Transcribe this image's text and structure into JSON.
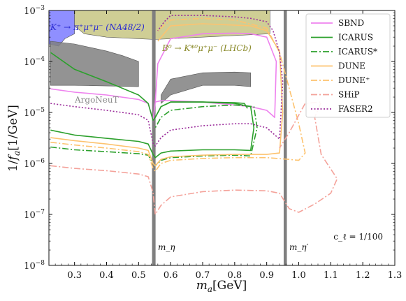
{
  "chart_data": {
    "type": "line",
    "xlabel": "m_a[GeV]",
    "ylabel": "1/f_a[1/GeV]",
    "xlim": [
      0.22,
      1.3
    ],
    "ylim": [
      1e-08,
      0.001
    ],
    "yscale": "log",
    "grid": false,
    "legend_position": "top-right",
    "x_ticks": [
      "0.3",
      "0.4",
      "0.5",
      "0.6",
      "0.7",
      "0.8",
      "0.9",
      "1.0",
      "1.1",
      "1.2",
      "1.3"
    ],
    "y_ticks": [
      {
        "base": "10",
        "exp": "−8"
      },
      {
        "base": "10",
        "exp": "−7"
      },
      {
        "base": "10",
        "exp": "−6"
      },
      {
        "base": "10",
        "exp": "−5"
      },
      {
        "base": "10",
        "exp": "−4"
      },
      {
        "base": "10",
        "exp": "−3"
      }
    ],
    "colors": {
      "SBND": "#ee82ee",
      "ICARUS": "#2ca02c",
      "DUNE": "#fdc36f",
      "SHiP": "#f4a29a",
      "FASER2": "#9b2d9b",
      "NA48": "#7b7bff",
      "LHCb": "#b5b35c",
      "ArgoNeuT": "#808080",
      "mask": "#7f7f7f"
    },
    "legend": [
      "SBND",
      "ICARUS",
      "ICARUS*",
      "DUNE",
      "DUNE⁺",
      "SHiP",
      "FASER2"
    ],
    "annotations": {
      "na48": "K⁺ → π⁺μ⁺μ⁻ (NA48/2)",
      "lhcb": "B⁰ → K*⁰μ⁺μ⁻ (LHCb)",
      "argoneut": "ArgoNeuT",
      "m_eta": "m_η",
      "m_etaprime": "m_η′",
      "coupling": "c_ℓ = 1/100"
    },
    "vertical_bands": [
      {
        "name": "eta",
        "x": [
          0.542,
          0.553
        ]
      },
      {
        "name": "eta-prime",
        "x": [
          0.953,
          0.963
        ]
      }
    ],
    "series": [
      {
        "name": "SBND",
        "style": "solid",
        "x": [
          0.225,
          0.3,
          0.4,
          0.5,
          0.53,
          0.545,
          0.552,
          0.57,
          0.6,
          0.7,
          0.8,
          0.85,
          0.9,
          0.925,
          0.93,
          0.9,
          0.85,
          0.8,
          0.7,
          0.6,
          0.56,
          0.552
        ],
        "y": [
          2.9e-05,
          2.5e-05,
          2.2e-05,
          1.8e-05,
          1.5e-05,
          7e-06,
          1.6e-05,
          1.7e-05,
          1.7e-05,
          1.6e-05,
          1.4e-05,
          1.3e-05,
          1.1e-05,
          8e-06,
          0.0001,
          0.0003,
          0.00035,
          0.00036,
          0.00035,
          0.00028,
          9e-05,
          1.6e-05
        ]
      },
      {
        "name": "ICARUS (upper)",
        "style": "solid",
        "x": [
          0.225,
          0.3,
          0.4,
          0.5,
          0.53,
          0.545,
          0.552,
          0.57,
          0.6,
          0.7,
          0.8,
          0.83,
          0.84
        ],
        "y": [
          0.00015,
          7e-05,
          4e-05,
          2.2e-05,
          1.5e-05,
          7e-06,
          8e-06,
          1.3e-05,
          1.6e-05,
          1.6e-05,
          1.55e-05,
          1.5e-05,
          1.2e-05
        ]
      },
      {
        "name": "ICARUS (lower)",
        "style": "solid",
        "x": [
          0.225,
          0.3,
          0.4,
          0.5,
          0.53,
          0.545,
          0.552,
          0.57,
          0.6,
          0.7,
          0.8,
          0.85,
          0.86,
          0.85,
          0.8,
          0.7,
          0.6,
          0.57,
          0.552
        ],
        "y": [
          4.5e-06,
          3.6e-06,
          3.1e-06,
          2.7e-06,
          2.4e-06,
          1.5e-06,
          1.3e-06,
          1.6e-06,
          1.75e-06,
          1.85e-06,
          1.85e-06,
          1.8e-06,
          5e-06,
          1.3e-05,
          1.5e-05,
          1.6e-05,
          1.6e-05,
          1.3e-05,
          8e-06
        ]
      },
      {
        "name": "ICARUS*",
        "style": "dashdot",
        "x": [
          0.225,
          0.3,
          0.4,
          0.5,
          0.53,
          0.545,
          0.552,
          0.57,
          0.6,
          0.7,
          0.8,
          0.85,
          0.87,
          0.86,
          0.8,
          0.7,
          0.6,
          0.57,
          0.552
        ],
        "y": [
          2.1e-06,
          1.85e-06,
          1.7e-06,
          1.55e-06,
          1.45e-06,
          1e-06,
          9e-07,
          1.15e-06,
          1.3e-06,
          1.4e-06,
          1.45e-06,
          1.4e-06,
          5e-06,
          1.3e-05,
          1.4e-05,
          1.3e-05,
          1.1e-05,
          8e-06,
          5e-06
        ]
      },
      {
        "name": "DUNE",
        "style": "solid",
        "x": [
          0.225,
          0.3,
          0.4,
          0.5,
          0.53,
          0.545,
          0.552,
          0.57,
          0.6,
          0.7,
          0.8,
          0.9,
          0.94,
          0.95,
          0.94,
          0.9,
          0.85,
          0.7,
          0.6,
          0.56
        ],
        "y": [
          3.2e-06,
          2.8e-06,
          2.4e-06,
          2e-06,
          1.8e-06,
          1e-06,
          9e-07,
          1.2e-06,
          1.35e-06,
          1.45e-06,
          1.5e-06,
          1.5e-06,
          1.6e-06,
          1e-05,
          0.00016,
          0.0004,
          0.0005,
          0.00055,
          0.0005,
          0.00025
        ]
      },
      {
        "name": "DUNE⁺",
        "style": "dashdot",
        "x": [
          0.225,
          0.3,
          0.4,
          0.5,
          0.53,
          0.545,
          0.552,
          0.57,
          0.6,
          0.7,
          0.8,
          0.9,
          0.97,
          1.0,
          1.02,
          1.0,
          0.97,
          0.94,
          0.9,
          0.8,
          0.7,
          0.6,
          0.56
        ],
        "y": [
          2.6e-06,
          2.3e-06,
          2e-06,
          1.7e-06,
          1.5e-06,
          8e-07,
          7e-07,
          1e-06,
          1.15e-06,
          1.25e-06,
          1.3e-06,
          1.3e-06,
          1.2e-06,
          1.15e-06,
          1.6e-06,
          6e-06,
          3e-05,
          0.00015,
          0.00045,
          0.00065,
          0.0007,
          0.00065,
          0.0004
        ]
      },
      {
        "name": "SHiP",
        "style": "dashdot",
        "x": [
          0.225,
          0.3,
          0.4,
          0.5,
          0.53,
          0.545,
          0.552,
          0.57,
          0.6,
          0.7,
          0.8,
          0.9,
          0.94,
          0.97,
          1.0,
          1.05,
          1.1,
          1.12,
          1.07,
          1.05,
          1.07,
          1.02,
          0.97,
          0.94
        ],
        "y": [
          9e-07,
          8e-07,
          7.2e-07,
          6.2e-07,
          5.5e-07,
          2.7e-07,
          1e-07,
          1.5e-07,
          2.2e-07,
          2.8e-07,
          3e-07,
          2.9e-07,
          2.6e-07,
          1.3e-07,
          1.1e-07,
          1.6e-07,
          2.6e-07,
          5e-07,
          1.5e-06,
          8e-06,
          1.6e-05,
          1.5e-05,
          4e-06,
          2e-06
        ]
      },
      {
        "name": "FASER2",
        "style": "dotted",
        "x": [
          0.225,
          0.3,
          0.4,
          0.5,
          0.53,
          0.545,
          0.552,
          0.57,
          0.6,
          0.7,
          0.8,
          0.85,
          0.9,
          0.94,
          0.95,
          0.94,
          0.92,
          0.9,
          0.85,
          0.8,
          0.7,
          0.6,
          0.58,
          0.56
        ],
        "y": [
          1.5e-05,
          1.3e-05,
          1.1e-05,
          9e-06,
          7e-06,
          2.5e-06,
          2.2e-06,
          3.2e-06,
          4.5e-06,
          5.5e-06,
          6e-06,
          6e-06,
          5e-06,
          3e-06,
          4e-05,
          0.00015,
          0.0004,
          0.0006,
          0.0007,
          0.00075,
          0.0008,
          0.0008,
          0.0006,
          0.0004
        ]
      }
    ],
    "shaded_regions": [
      {
        "name": "NA48/2",
        "x": [
          0.22,
          0.3,
          0.3,
          0.27,
          0.25,
          0.22
        ],
        "y": [
          0.001,
          0.001,
          0.00035,
          0.00028,
          0.0002,
          0.00022
        ]
      },
      {
        "name": "LHCb",
        "x": [
          0.3,
          0.91,
          0.91,
          0.7,
          0.6,
          0.55,
          0.5,
          0.4,
          0.33,
          0.3
        ],
        "y": [
          0.001,
          0.001,
          0.00035,
          0.0003,
          0.00028,
          0.00027,
          0.00028,
          0.0003,
          0.00035,
          0.0005
        ]
      },
      {
        "name": "ArgoNeuT left",
        "x": [
          0.225,
          0.3,
          0.4,
          0.45,
          0.5,
          0.5,
          0.4,
          0.3,
          0.225
        ],
        "y": [
          0.00025,
          0.00022,
          0.00016,
          0.00013,
          0.0001,
          3.2e-05,
          3.3e-05,
          3.4e-05,
          3.4e-05
        ]
      },
      {
        "name": "ArgoNeuT right",
        "x": [
          0.57,
          0.6,
          0.7,
          0.8,
          0.85,
          0.85,
          0.8,
          0.7,
          0.6,
          0.57
        ],
        "y": [
          2.2e-05,
          4.5e-05,
          6e-05,
          6.2e-05,
          6e-05,
          3.2e-05,
          3.4e-05,
          3.4e-05,
          2.2e-05,
          1.5e-05
        ]
      }
    ]
  }
}
